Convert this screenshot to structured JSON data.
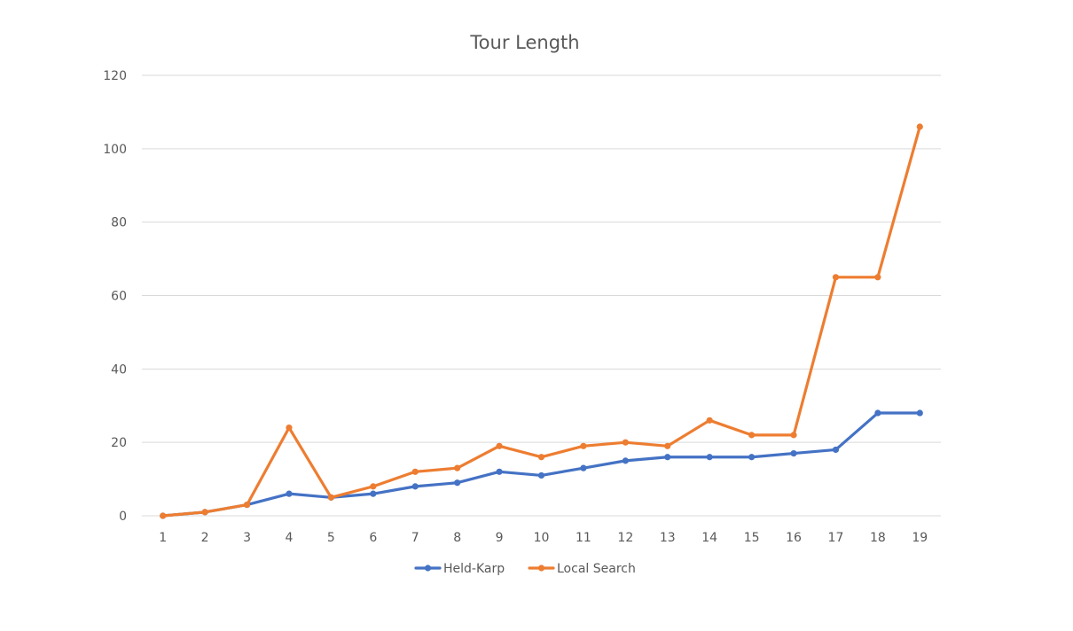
{
  "chart_data": {
    "type": "line",
    "title": "Tour Length",
    "xlabel": "",
    "ylabel": "",
    "x": [
      1,
      2,
      3,
      4,
      5,
      6,
      7,
      8,
      9,
      10,
      11,
      12,
      13,
      14,
      15,
      16,
      17,
      18,
      19
    ],
    "ylim": [
      0,
      120
    ],
    "yticks": [
      0,
      20,
      40,
      60,
      80,
      100,
      120
    ],
    "grid": true,
    "legend_position": "bottom",
    "series": [
      {
        "name": "Held-Karp",
        "color": "#4472c4",
        "values": [
          0,
          1,
          3,
          6,
          5,
          6,
          8,
          9,
          12,
          11,
          13,
          15,
          16,
          16,
          16,
          17,
          18,
          28,
          28
        ]
      },
      {
        "name": "Local Search",
        "color": "#ed7d31",
        "values": [
          0,
          1,
          3,
          24,
          5,
          8,
          12,
          13,
          19,
          16,
          19,
          20,
          19,
          26,
          22,
          22,
          65,
          65,
          106
        ]
      }
    ]
  }
}
